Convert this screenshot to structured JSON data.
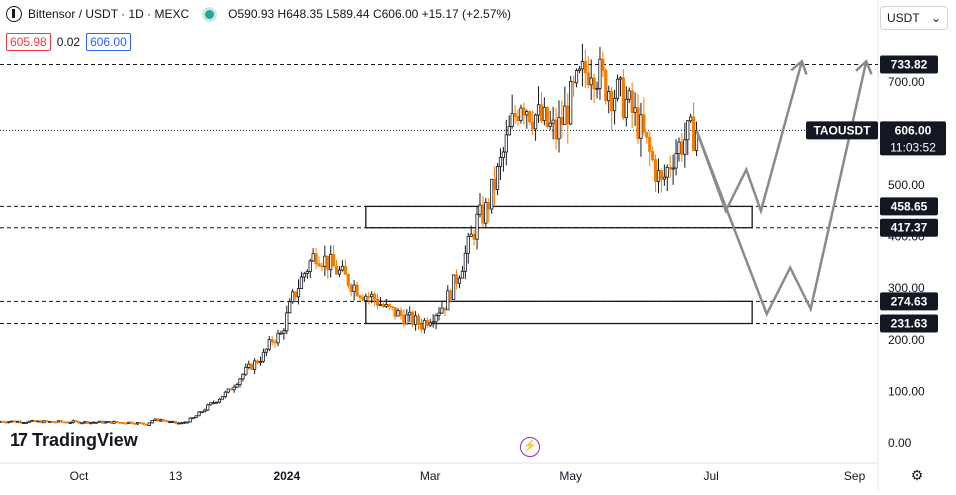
{
  "header": {
    "symbol_title": "Bittensor / USDT · 1D · MEXC",
    "ohlc": "O590.93 H648.35 L589.44 C606.00 +15.17 (+2.57%)"
  },
  "quote": {
    "bid": "605.98",
    "spread": "0.02",
    "ask": "606.00"
  },
  "currency_select": {
    "value": "USDT",
    "chevron_icon": "chevron-down-icon"
  },
  "branding": {
    "name": "TradingView"
  },
  "colors": {
    "up": "#131722",
    "down": "#f57c00",
    "axis_bg": "#ffffff",
    "price_tag": "#131722"
  },
  "chart_data": {
    "type": "candlestick",
    "symbol": "TAOUSDT",
    "ylim": [
      0,
      820
    ],
    "x_ticks": [
      "Oct",
      "13",
      "2024",
      "Mar",
      "May",
      "Jul",
      "Sep"
    ],
    "y_ticks": [
      "0.00",
      "100.00",
      "200.00",
      "300.00",
      "400.00",
      "500.00",
      "700.00"
    ],
    "last_price": {
      "label": "TAOUSDT",
      "value": "606.00",
      "countdown": "11:03:52",
      "price": 606
    },
    "levels": [
      {
        "label": "733.82",
        "value": 733.82
      },
      {
        "label": "458.65",
        "value": 458.65
      },
      {
        "label": "417.37",
        "value": 417.37
      },
      {
        "label": "274.63",
        "value": 274.63
      },
      {
        "label": "231.63",
        "value": 231.63
      }
    ],
    "zones": [
      {
        "low": 417.37,
        "high": 458.65
      },
      {
        "low": 231.63,
        "high": 274.63
      }
    ],
    "price_path": [
      [
        45,
        40
      ],
      [
        48,
        38
      ],
      [
        50,
        36
      ],
      [
        52,
        44
      ],
      [
        55,
        45
      ],
      [
        58,
        40
      ],
      [
        62,
        38
      ],
      [
        66,
        48
      ],
      [
        72,
        75
      ],
      [
        78,
        100
      ],
      [
        84,
        140
      ],
      [
        90,
        170
      ],
      [
        93,
        200
      ],
      [
        96,
        210
      ],
      [
        100,
        280
      ],
      [
        104,
        330
      ],
      [
        108,
        370
      ],
      [
        112,
        350
      ],
      [
        116,
        330
      ],
      [
        120,
        310
      ],
      [
        124,
        290
      ],
      [
        128,
        280
      ],
      [
        132,
        260
      ],
      [
        136,
        250
      ],
      [
        140,
        240
      ],
      [
        144,
        230
      ],
      [
        148,
        250
      ],
      [
        152,
        270
      ],
      [
        156,
        320
      ],
      [
        160,
        380
      ],
      [
        163,
        430
      ],
      [
        166,
        450
      ],
      [
        170,
        520
      ],
      [
        174,
        600
      ],
      [
        178,
        670
      ],
      [
        182,
        640
      ],
      [
        186,
        620
      ],
      [
        190,
        600
      ],
      [
        194,
        650
      ],
      [
        198,
        700
      ],
      [
        202,
        740
      ],
      [
        206,
        700
      ],
      [
        210,
        680
      ],
      [
        214,
        660
      ],
      [
        218,
        620
      ],
      [
        222,
        560
      ],
      [
        226,
        500
      ],
      [
        230,
        560
      ],
      [
        234,
        590
      ],
      [
        238,
        606
      ]
    ],
    "projection_a": [
      [
        238,
        606
      ],
      [
        248,
        450
      ],
      [
        255,
        530
      ],
      [
        260,
        450
      ],
      [
        274,
        740
      ]
    ],
    "projection_b": [
      [
        238,
        606
      ],
      [
        262,
        250
      ],
      [
        270,
        340
      ],
      [
        277,
        260
      ],
      [
        296,
        740
      ]
    ]
  }
}
